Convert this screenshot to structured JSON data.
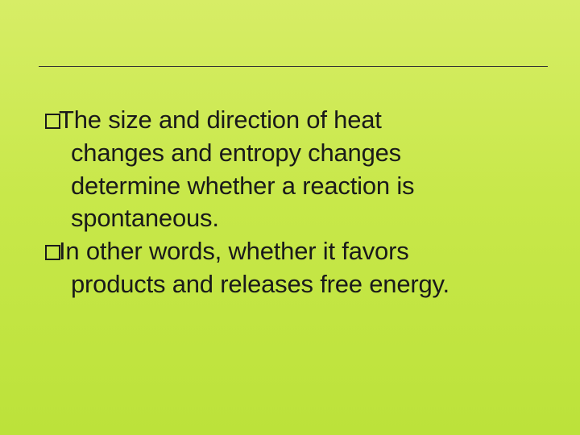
{
  "slide": {
    "background_gradient": [
      "#d7ed66",
      "#c8e84a",
      "#bce23a"
    ],
    "divider_color": "#333333",
    "text_color": "#1a1a1a",
    "font_family": "Arial",
    "font_size_pt": 24,
    "bullets": [
      {
        "first_word": "The",
        "rest_line1": " size and direction of heat",
        "line2": "changes and entropy changes",
        "line3": "determine whether a reaction is",
        "line4": "spontaneous."
      },
      {
        "first_word": "In",
        "rest_line1": " other words, whether it favors",
        "line2": "products and releases free energy."
      }
    ]
  }
}
